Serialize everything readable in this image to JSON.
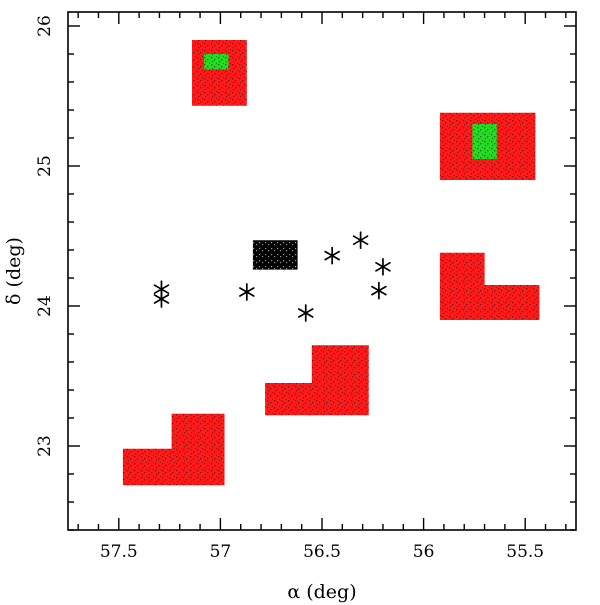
{
  "chart_data": {
    "type": "scatter",
    "title": "",
    "xlabel": "α (deg)",
    "ylabel": "δ (deg)",
    "xlim": [
      57.75,
      55.25
    ],
    "ylim": [
      22.4,
      26.1
    ],
    "x_ticks": [
      57.5,
      57,
      56.5,
      56,
      55.5
    ],
    "x_tick_labels": [
      "57.5",
      "57",
      "56.5",
      "56",
      "55.5"
    ],
    "y_ticks": [
      23,
      24,
      25,
      26
    ],
    "y_tick_labels": [
      "23",
      "24",
      "25",
      "26"
    ],
    "series": [
      {
        "name": "red fields",
        "color": "#ff1a1a",
        "regions": [
          {
            "name": "field-top-left",
            "polygon": [
              [
                57.14,
                25.9
              ],
              [
                56.87,
                25.9
              ],
              [
                56.87,
                25.43
              ],
              [
                57.14,
                25.43
              ]
            ]
          },
          {
            "name": "field-top-right",
            "polygon": [
              [
                55.92,
                25.38
              ],
              [
                55.45,
                25.38
              ],
              [
                55.45,
                24.9
              ],
              [
                55.92,
                24.9
              ]
            ]
          },
          {
            "name": "field-right-L",
            "polygon": [
              [
                55.92,
                24.38
              ],
              [
                55.7,
                24.38
              ],
              [
                55.7,
                24.15
              ],
              [
                55.43,
                24.15
              ],
              [
                55.43,
                23.9
              ],
              [
                55.92,
                23.9
              ]
            ]
          },
          {
            "name": "field-center-L",
            "polygon": [
              [
                56.78,
                23.45
              ],
              [
                56.55,
                23.45
              ],
              [
                56.55,
                23.72
              ],
              [
                56.27,
                23.72
              ],
              [
                56.27,
                23.22
              ],
              [
                56.78,
                23.22
              ]
            ]
          },
          {
            "name": "field-bottom-left-L",
            "polygon": [
              [
                57.48,
                22.98
              ],
              [
                57.24,
                22.98
              ],
              [
                57.24,
                23.23
              ],
              [
                56.98,
                23.23
              ],
              [
                56.98,
                22.72
              ],
              [
                57.48,
                22.72
              ]
            ]
          }
        ]
      },
      {
        "name": "green fields",
        "color": "#22dd22",
        "regions": [
          {
            "name": "green-top-left",
            "polygon": [
              [
                57.08,
                25.8
              ],
              [
                56.96,
                25.8
              ],
              [
                56.96,
                25.69
              ],
              [
                57.08,
                25.69
              ]
            ]
          },
          {
            "name": "green-top-right",
            "polygon": [
              [
                55.76,
                25.3
              ],
              [
                55.64,
                25.3
              ],
              [
                55.64,
                25.05
              ],
              [
                55.76,
                25.05
              ]
            ]
          }
        ]
      },
      {
        "name": "black field",
        "color": "#000000",
        "regions": [
          {
            "name": "black-center",
            "polygon": [
              [
                56.84,
                24.47
              ],
              [
                56.62,
                24.47
              ],
              [
                56.62,
                24.26
              ],
              [
                56.84,
                24.26
              ]
            ]
          }
        ]
      },
      {
        "name": "stars",
        "marker": "asterisk",
        "points": [
          {
            "x": 57.29,
            "y": 24.12
          },
          {
            "x": 57.29,
            "y": 24.05
          },
          {
            "x": 56.87,
            "y": 24.1
          },
          {
            "x": 56.58,
            "y": 23.95
          },
          {
            "x": 56.45,
            "y": 24.36
          },
          {
            "x": 56.31,
            "y": 24.47
          },
          {
            "x": 56.2,
            "y": 24.28
          },
          {
            "x": 56.22,
            "y": 24.11
          }
        ]
      }
    ],
    "grid": false,
    "legend": "none"
  }
}
